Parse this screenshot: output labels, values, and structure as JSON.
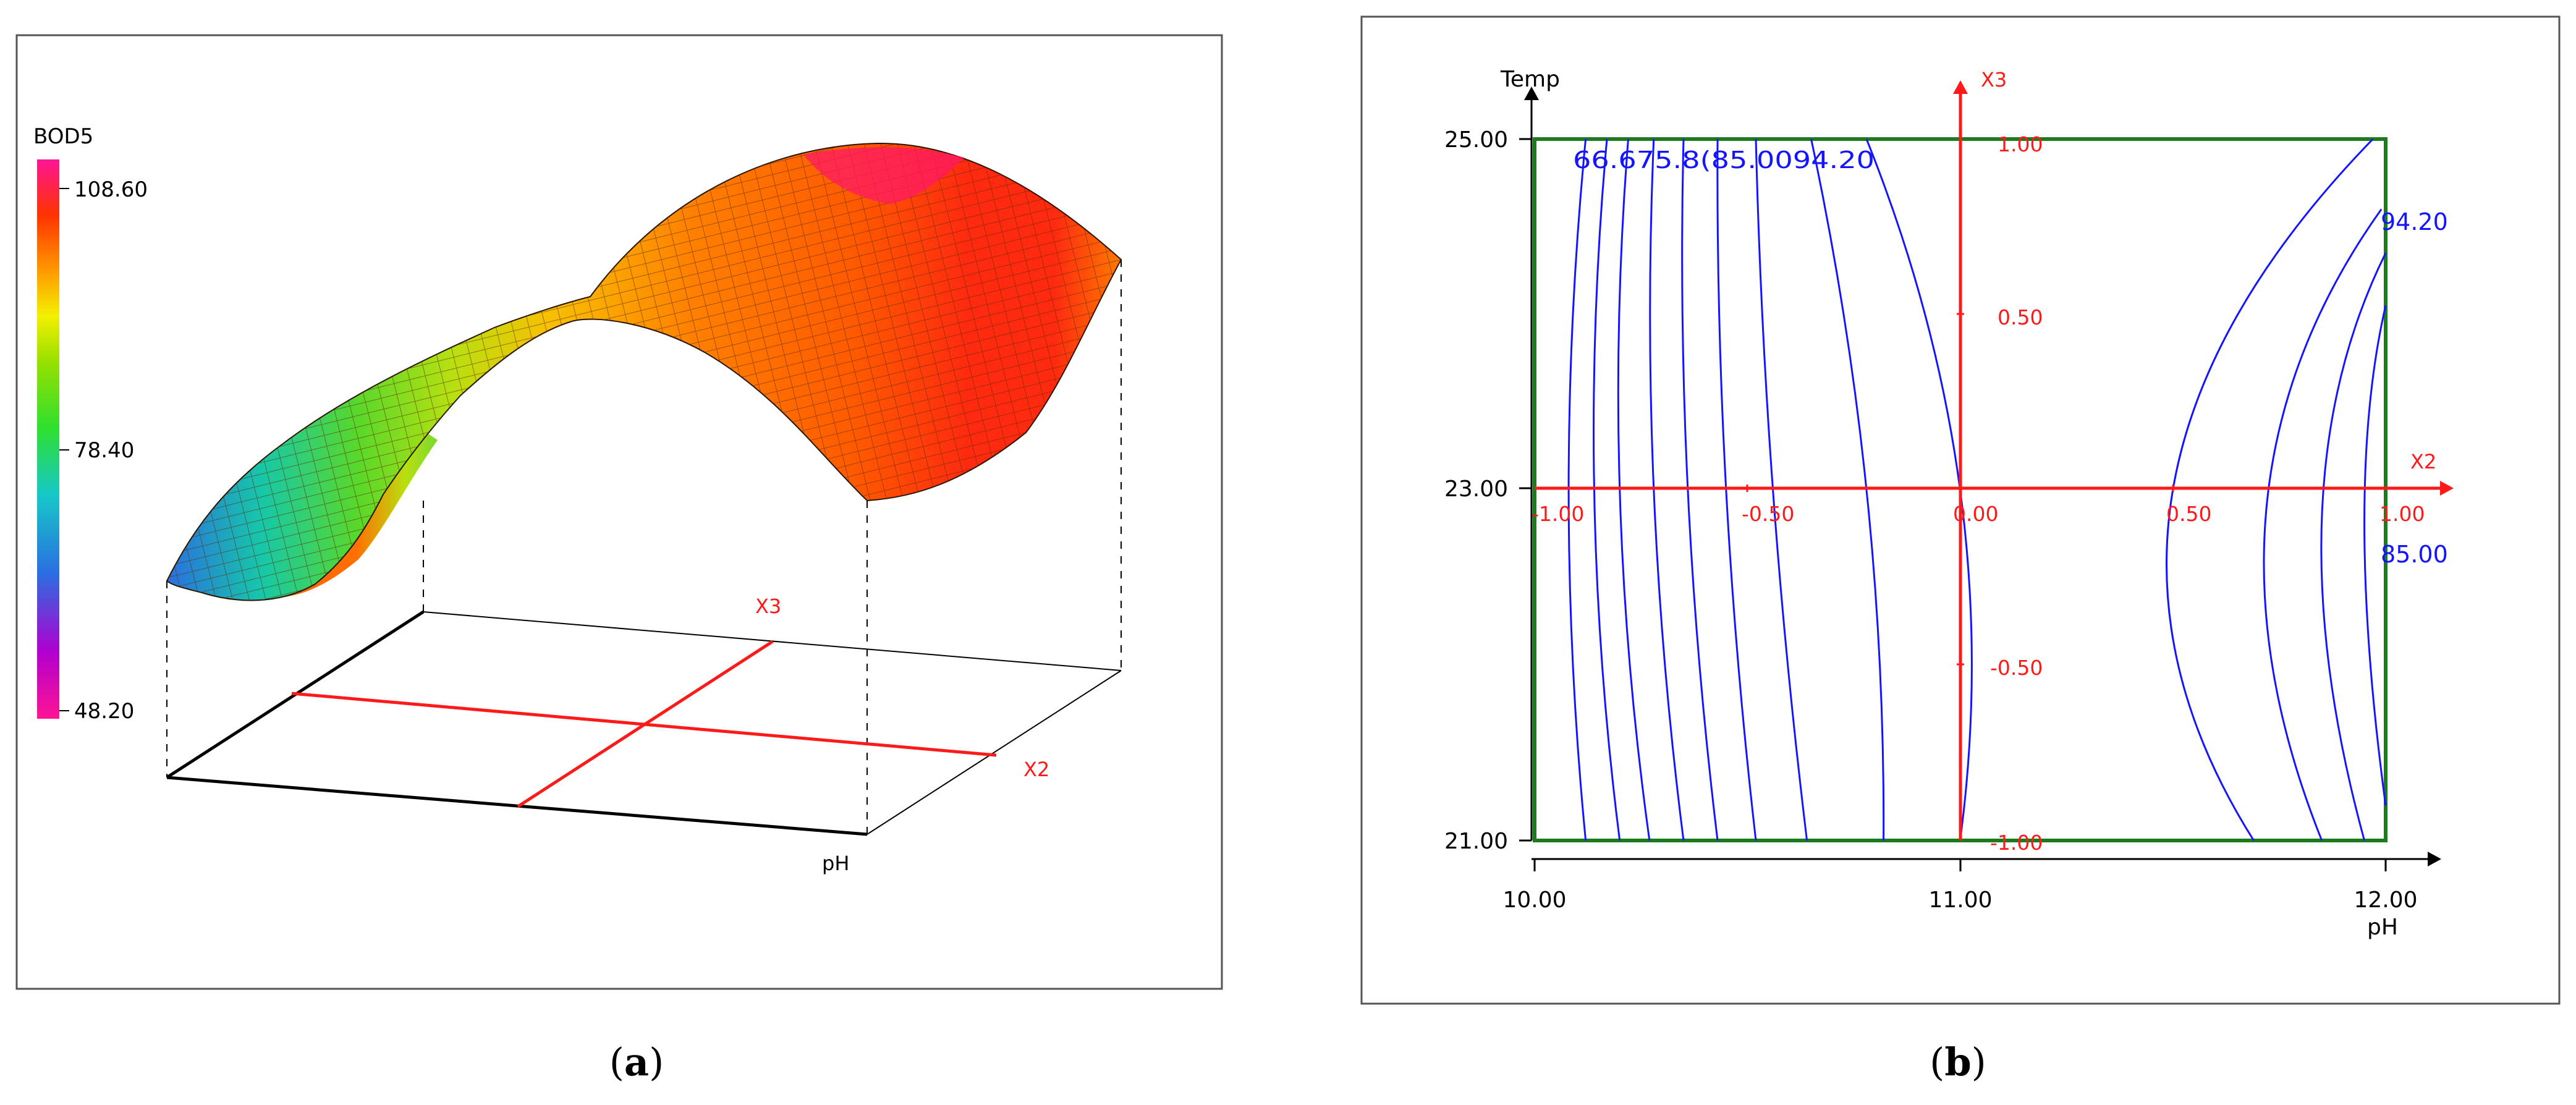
{
  "panels": [
    {
      "label": "(a)",
      "label_open": "(",
      "label_letter": "a",
      "label_close": ")",
      "chart_data": {
        "type": "surface3d",
        "zlabel": "BOD5",
        "xlabel": "pH",
        "x_axis_coded": "X2",
        "y_axis_coded": "X3",
        "colorbar_ticks": [
          "108.60",
          "78.40",
          "48.20"
        ],
        "zlim": [
          48.2,
          108.6
        ],
        "surface_shape": "ridge along X3, peaking near X2 = 0.55, sloping down toward X2 = -1; saddle near X2 = -0.2",
        "colorscale": [
          "#ff1493",
          "#9400d3",
          "#2a6fe0",
          "#16c8c8",
          "#2ee02e",
          "#7fe000",
          "#f3f000",
          "#ff9000",
          "#ff5a00",
          "#ff0000",
          "#ff1493"
        ]
      }
    },
    {
      "label": "(b)",
      "label_open": "(",
      "label_letter": "b",
      "label_close": ")",
      "chart_data": {
        "type": "contour",
        "xlabel": "pH",
        "ylabel": "Temp",
        "xlim": [
          10.0,
          12.0
        ],
        "ylim": [
          21.0,
          25.0
        ],
        "x_ticks": [
          "10.00",
          "11.00",
          "12.00"
        ],
        "y_ticks": [
          "25.00",
          "23.00",
          "21.00"
        ],
        "coded_axes": {
          "x_name": "X2",
          "y_name": "X3",
          "x_ticks": [
            "-1.00",
            "-0.50",
            "0.00",
            "0.50",
            "1.00"
          ],
          "y_ticks": [
            "1.00",
            "0.50",
            "-0.50",
            "-1.00"
          ]
        },
        "contour_labels_top": "66.675.8(85.0094.20",
        "contour_labels_right": [
          "94.20",
          "85.00"
        ],
        "left_contours": [
          {
            "top": [
              10.12,
              25.0
            ],
            "mid": [
              10.08,
              23.0
            ],
            "bottom": [
              10.12,
              21.0
            ]
          },
          {
            "top": [
              10.17,
              25.0
            ],
            "mid": [
              10.14,
              23.0
            ],
            "bottom": [
              10.2,
              21.0
            ]
          },
          {
            "top": [
              10.22,
              25.0
            ],
            "mid": [
              10.2,
              23.0
            ],
            "bottom": [
              10.27,
              21.0
            ]
          },
          {
            "top": [
              10.28,
              25.0
            ],
            "mid": [
              10.28,
              23.0
            ],
            "bottom": [
              10.35,
              21.0
            ]
          },
          {
            "top": [
              10.35,
              25.0
            ],
            "mid": [
              10.36,
              23.0
            ],
            "bottom": [
              10.43,
              21.0
            ]
          },
          {
            "top": [
              10.43,
              25.0
            ],
            "mid": [
              10.45,
              23.0
            ],
            "bottom": [
              10.52,
              21.0
            ]
          },
          {
            "top": [
              10.52,
              25.0
            ],
            "mid": [
              10.56,
              23.0
            ],
            "bottom": [
              10.64,
              21.0
            ]
          },
          {
            "top": [
              10.65,
              25.0
            ],
            "mid": [
              10.78,
              23.0
            ],
            "bottom": [
              10.82,
              21.0
            ]
          },
          {
            "top": [
              10.78,
              25.0
            ],
            "mid": [
              11.0,
              23.0
            ],
            "bottom": [
              11.0,
              21.0
            ]
          }
        ],
        "right_contours": [
          {
            "top": [
              11.97,
              25.0
            ],
            "mid": [
              11.5,
              23.0
            ],
            "bottom": [
              11.69,
              21.0
            ]
          },
          {
            "top": [
              11.99,
              24.6
            ],
            "mid": [
              11.72,
              23.0
            ],
            "bottom": [
              11.85,
              21.0
            ]
          },
          {
            "top": [
              12.0,
              24.35
            ],
            "mid": [
              11.85,
              23.0
            ],
            "bottom": [
              11.95,
              21.0
            ]
          },
          {
            "top": [
              12.0,
              24.05
            ],
            "mid": [
              11.95,
              23.0
            ],
            "bottom": [
              12.0,
              21.2
            ]
          }
        ]
      }
    }
  ],
  "colors": {
    "contour": "#1414ff",
    "coded_axis": "#ff1a1a",
    "region_border": "#1e7a1e",
    "axis": "#000000"
  }
}
